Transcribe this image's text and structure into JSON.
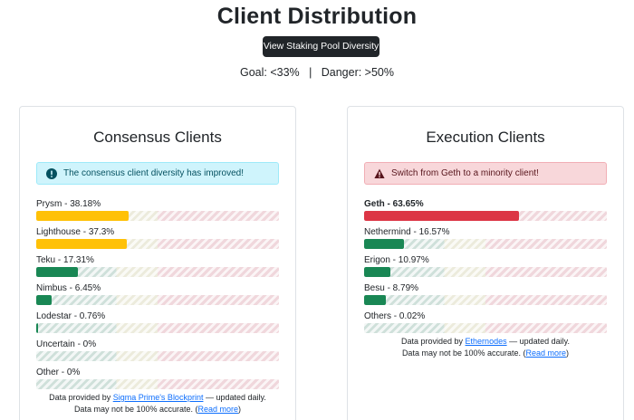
{
  "title": "Client Distribution",
  "staking_button": "View Staking Pool Diversity",
  "goal": "Goal: <33%   |   Danger: >50%",
  "colors": {
    "majority": "#ffc107",
    "minority": "#198754",
    "supermajority": "#dc3545",
    "info": "#055160"
  },
  "consensus": {
    "title": "Consensus Clients",
    "alert": "The consensus client diversity has improved!",
    "alert_icon": "exclamation-circle-icon",
    "clients": [
      {
        "label": "Prysm - 38.18%",
        "share": 38.18,
        "status": "majority"
      },
      {
        "label": "Lighthouse - 37.3%",
        "share": 37.3,
        "status": "majority"
      },
      {
        "label": "Teku - 17.31%",
        "share": 17.31,
        "status": "minority"
      },
      {
        "label": "Nimbus - 6.45%",
        "share": 6.45,
        "status": "minority"
      },
      {
        "label": "Lodestar - 0.76%",
        "share": 0.76,
        "status": "minority"
      },
      {
        "label": "Uncertain - 0%",
        "share": 0,
        "status": "minority"
      },
      {
        "label": "Other - 0%",
        "share": 0,
        "status": "minority"
      }
    ],
    "footer": {
      "prefix": "Data provided by ",
      "link": "Sigma Prime's Blockprint",
      "suffix": " — updated daily.",
      "accuracy": "Data may not be 100% accurate. (",
      "read_more": "Read more",
      "close_paren": ")"
    }
  },
  "execution": {
    "title": "Execution Clients",
    "alert": "Switch from Geth to a minority client!",
    "alert_icon": "warning-triangle-icon",
    "clients": [
      {
        "label": "Geth - 63.65%",
        "share": 63.65,
        "status": "supermajority"
      },
      {
        "label": "Nethermind - 16.57%",
        "share": 16.57,
        "status": "minority"
      },
      {
        "label": "Erigon - 10.97%",
        "share": 10.97,
        "status": "minority"
      },
      {
        "label": "Besu - 8.79%",
        "share": 8.79,
        "status": "minority"
      },
      {
        "label": "Others - 0.02%",
        "share": 0.02,
        "status": "minority"
      }
    ],
    "footer": {
      "prefix": "Data provided by ",
      "link": "Ethernodes",
      "suffix": " — updated daily.",
      "accuracy": "Data may not be 100% accurate. (",
      "read_more": "Read more",
      "close_paren": ")"
    }
  }
}
